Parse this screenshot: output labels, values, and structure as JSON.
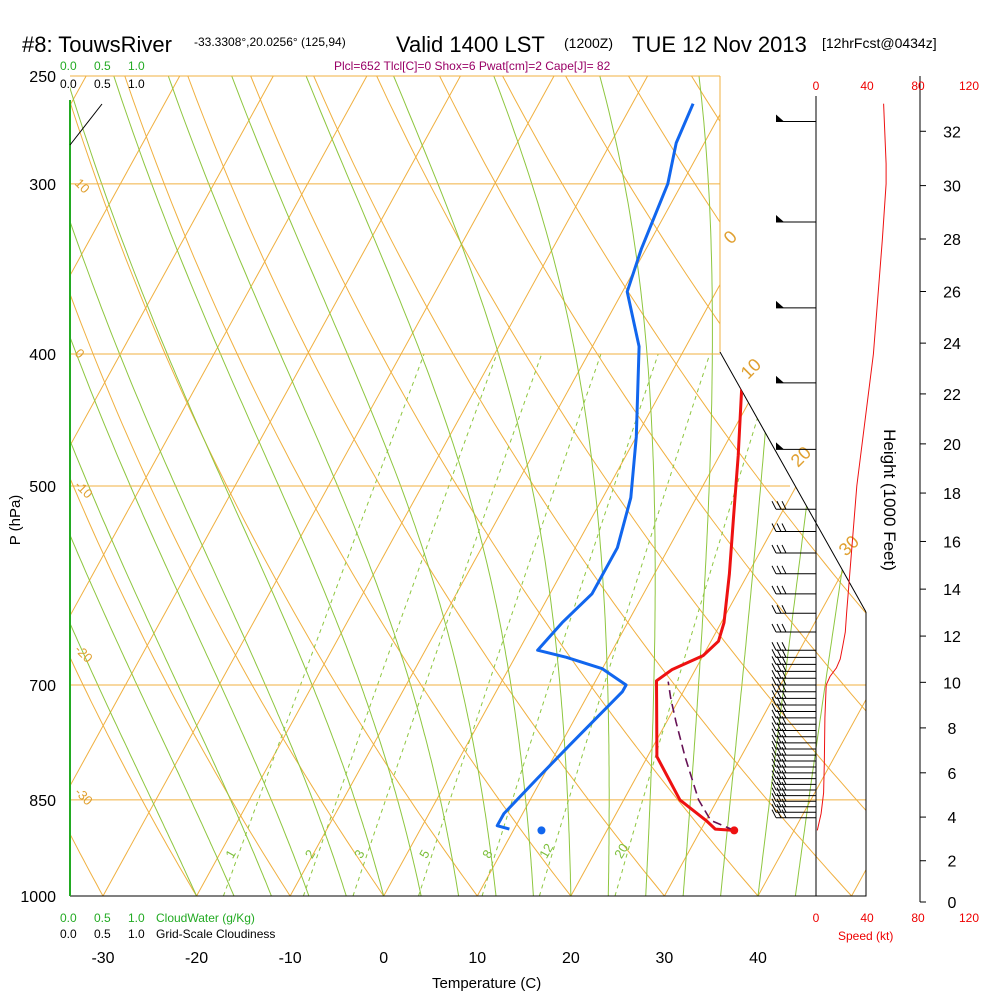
{
  "title": {
    "station": "#8: TouwsRiver",
    "coords": "-33.3308°,20.0256° (125,94)",
    "valid": "Valid 1400 LST",
    "zulu": "(1200Z)",
    "date": "TUE 12 Nov 2013",
    "forecast": "[12hrFcst@0434z]"
  },
  "params_line": "Plcl=652 Tlcl[C]=0 Shox=6 Pwat[cm]=2 Cape[J]= 82",
  "cloud_water": {
    "ticks": [
      "0.0",
      "0.5",
      "1.0"
    ],
    "label": "CloudWater (g/Kg)"
  },
  "cloudiness": {
    "ticks": [
      "0.0",
      "0.5",
      "1.0"
    ],
    "label": "Grid-Scale Cloudiness"
  },
  "speed_axis": {
    "ticks": [
      "0",
      "40",
      "80",
      "120"
    ],
    "label": "Speed (kt)"
  },
  "chart_data": {
    "type": "line",
    "title": "",
    "xlabel": "Temperature (C)",
    "ylabel": "P (hPa)",
    "y2label": "Height (1000 Feet)",
    "xlim": [
      -30,
      40
    ],
    "x_ticks": [
      -30,
      -20,
      -10,
      0,
      10,
      20,
      30,
      40
    ],
    "pressure_ticks": [
      250,
      300,
      400,
      500,
      700,
      850,
      1000
    ],
    "pressure_range": [
      250,
      1000
    ],
    "y_scale": "log",
    "height_ticks": [
      0,
      2,
      4,
      6,
      8,
      10,
      12,
      14,
      16,
      18,
      20,
      22,
      24,
      26,
      28,
      30,
      32
    ],
    "isotherm_labels": [
      "10",
      "0",
      "-10",
      "-20",
      "-30",
      "0",
      "10",
      "20",
      "30"
    ],
    "mixing_ratio_labels": [
      "1",
      "2",
      "3",
      "5",
      "8",
      "12",
      "20"
    ],
    "series": [
      {
        "color": "#ee1111",
        "points": [
          [
            33.6,
            895
          ],
          [
            31.5,
            893
          ],
          [
            30,
            880
          ],
          [
            26,
            850
          ],
          [
            21,
            790
          ],
          [
            17.5,
            715
          ],
          [
            16.5,
            695
          ],
          [
            17.5,
            682
          ],
          [
            20,
            666
          ],
          [
            20.8,
            650
          ],
          [
            20.3,
            630
          ],
          [
            18,
            580
          ],
          [
            15,
            525
          ],
          [
            12,
            475
          ],
          [
            8.5,
            425
          ],
          [
            5,
            378
          ],
          [
            1.7,
            335
          ],
          [
            -1.8,
            295
          ],
          [
            -3.4,
            270
          ],
          [
            -4.2,
            260
          ]
        ]
      },
      {
        "color": "#1166ee",
        "points": [
          [
            9.5,
            893
          ],
          [
            8,
            888
          ],
          [
            8,
            870
          ],
          [
            9.5,
            820
          ],
          [
            11,
            775
          ],
          [
            13.5,
            708
          ],
          [
            13.5,
            700
          ],
          [
            10,
            681
          ],
          [
            5.5,
            668
          ],
          [
            2,
            660
          ],
          [
            3,
            630
          ],
          [
            4.5,
            600
          ],
          [
            4.5,
            555
          ],
          [
            3,
            510
          ],
          [
            0,
            460
          ],
          [
            -5,
            395
          ],
          [
            -9.5,
            360
          ],
          [
            -10.5,
            335
          ],
          [
            -11.5,
            300
          ],
          [
            -13,
            280
          ],
          [
            -13.5,
            262
          ]
        ]
      },
      {
        "color": "#661155",
        "dash": true,
        "points": [
          [
            33.6,
            895
          ],
          [
            30.5,
            880
          ],
          [
            28,
            850
          ],
          [
            24,
            790
          ],
          [
            21,
            745
          ],
          [
            19,
            715
          ],
          [
            17.8,
            696
          ]
        ]
      }
    ],
    "surface_points": [
      {
        "color": "#ee1111",
        "value": [
          33.6,
          895
        ]
      },
      {
        "color": "#1166ee",
        "value": [
          13.0,
          895
        ]
      }
    ],
    "wind_speed_profile": [
      [
        1,
        895
      ],
      [
        4,
        870
      ],
      [
        6,
        840
      ],
      [
        6.5,
        800
      ],
      [
        7,
        740
      ],
      [
        8,
        700
      ],
      [
        11,
        690
      ],
      [
        16,
        680
      ],
      [
        19,
        670
      ],
      [
        21,
        655
      ],
      [
        23,
        640
      ],
      [
        24,
        620
      ],
      [
        32,
        500
      ],
      [
        45,
        400
      ],
      [
        52,
        330
      ],
      [
        55,
        300
      ],
      [
        55,
        290
      ],
      [
        53,
        262
      ]
    ]
  }
}
